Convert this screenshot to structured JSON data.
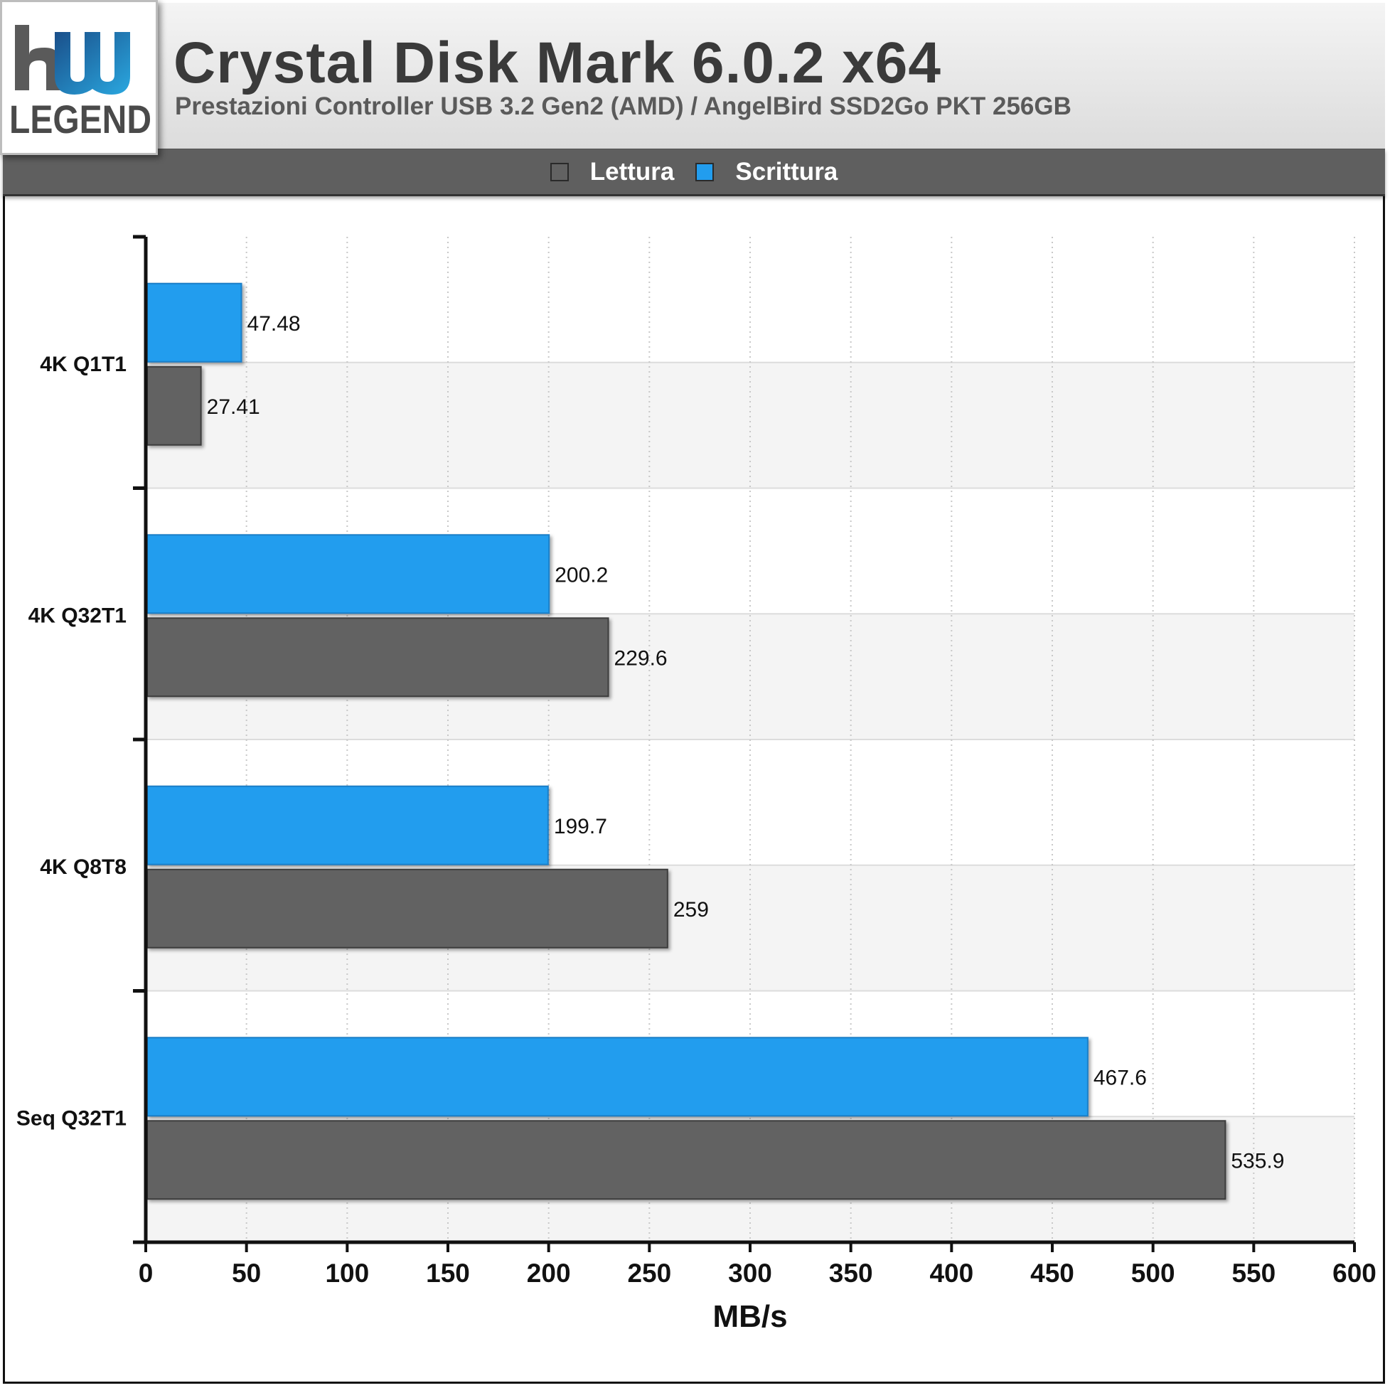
{
  "header": {
    "logo_text": "hw LEGEND",
    "title": "Crystal Disk Mark 6.0.2 x64",
    "subtitle": "Prestazioni Controller USB 3.2 Gen2 (AMD) / AngelBird SSD2Go PKT 256GB"
  },
  "colors": {
    "lettura": "#626262",
    "scrittura": "#229dee",
    "grid": "#c8c8c8",
    "stripe": "#f4f4f4"
  },
  "chart_data": {
    "type": "bar",
    "orientation": "horizontal",
    "categories": [
      "4K Q1T1",
      "4K Q32T1",
      "4K Q8T8",
      "Seq Q32T1"
    ],
    "series": [
      {
        "name": "Lettura",
        "values": [
          27.41,
          229.6,
          259,
          535.9
        ]
      },
      {
        "name": "Scrittura",
        "values": [
          47.48,
          200.2,
          199.7,
          467.6
        ]
      }
    ],
    "data_labels": {
      "Lettura": [
        "27.41",
        "229.6",
        "259",
        "535.9"
      ],
      "Scrittura": [
        "47.48",
        "200.2",
        "199.7",
        "467.6"
      ]
    },
    "xlabel": "MB/s",
    "xlim": [
      0,
      600
    ],
    "xticks": [
      "0",
      "50",
      "100",
      "150",
      "200",
      "250",
      "300",
      "350",
      "400",
      "450",
      "500",
      "550",
      "600"
    ],
    "grid": true,
    "legend": [
      "Lettura",
      "Scrittura"
    ],
    "legend_position": "top"
  }
}
